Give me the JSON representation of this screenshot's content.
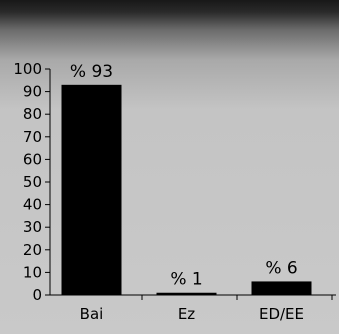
{
  "chart_data": {
    "type": "bar",
    "categories": [
      "Bai",
      "Ez",
      "ED/EE"
    ],
    "values": [
      93,
      1,
      6
    ],
    "data_labels": [
      "% 93",
      "% 1",
      "% 6"
    ],
    "title": "",
    "xlabel": "",
    "ylabel": "",
    "ylim": [
      0,
      100
    ],
    "yticks": [
      "0",
      "10",
      "20",
      "30",
      "40",
      "50",
      "60",
      "70",
      "80",
      "90",
      "100"
    ],
    "grid": false,
    "legend": "none",
    "bar_color": "#000000",
    "background_color": "#c6c6c6"
  }
}
